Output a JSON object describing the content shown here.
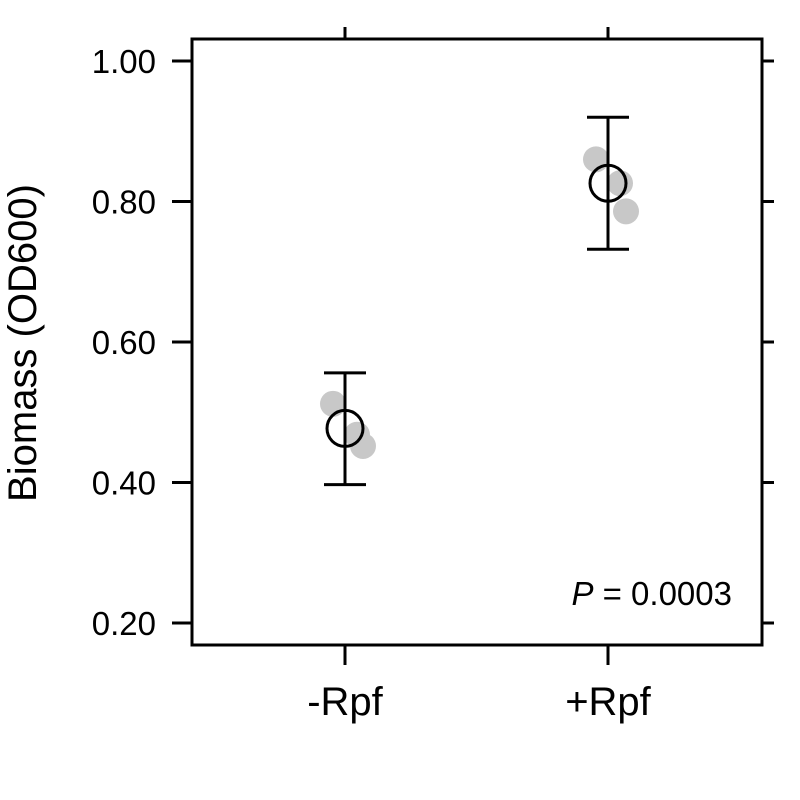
{
  "chart_data": {
    "type": "scatter",
    "categories": [
      "-Rpf",
      "+Rpf"
    ],
    "ylabel": "Biomass (OD600)",
    "xlabel": "",
    "title": "",
    "ylim": [
      0.175,
      1.035
    ],
    "yticks": [
      0.2,
      0.4,
      0.6,
      0.8,
      1.0
    ],
    "ytick_labels": [
      "0.20",
      "0.40",
      "0.60",
      "0.80",
      "1.00"
    ],
    "grid": false,
    "raw_points": [
      {
        "category": "-Rpf",
        "values": [
          0.512,
          0.468,
          0.452
        ]
      },
      {
        "category": "+Rpf",
        "values": [
          0.86,
          0.826,
          0.786
        ]
      }
    ],
    "summary": [
      {
        "category": "-Rpf",
        "mean": 0.477,
        "lower": 0.397,
        "upper": 0.556
      },
      {
        "category": "+Rpf",
        "mean": 0.826,
        "lower": 0.732,
        "upper": 0.92
      }
    ],
    "annotation": {
      "prefix": "P",
      "text": " = 0.0003"
    },
    "colors": {
      "raw_points": "#c8c8c8",
      "summary": "#000000"
    }
  }
}
